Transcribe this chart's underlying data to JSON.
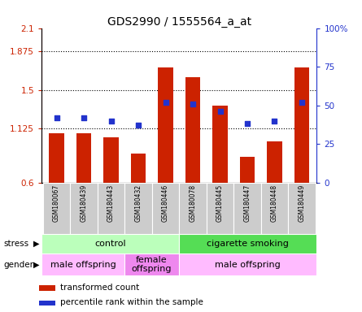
{
  "title": "GDS2990 / 1555564_a_at",
  "samples": [
    "GSM180067",
    "GSM180439",
    "GSM180443",
    "GSM180432",
    "GSM180446",
    "GSM180078",
    "GSM180445",
    "GSM180447",
    "GSM180448",
    "GSM180449"
  ],
  "bar_values": [
    1.08,
    1.08,
    1.04,
    0.88,
    1.72,
    1.62,
    1.35,
    0.85,
    1.0,
    1.72
  ],
  "dot_values": [
    42,
    42,
    40,
    37,
    52,
    51,
    46,
    38,
    40,
    52
  ],
  "ylim": [
    0.6,
    2.1
  ],
  "yticks_left": [
    0.6,
    1.125,
    1.5,
    1.875,
    2.1
  ],
  "ytick_labels_left": [
    "0.6",
    "1.125",
    "1.5",
    "1.875",
    "2.1"
  ],
  "yticks_right": [
    0,
    25,
    50,
    75,
    100
  ],
  "ytick_labels_right": [
    "0",
    "25",
    "50",
    "75",
    "100%"
  ],
  "bar_color": "#cc2200",
  "dot_color": "#2233cc",
  "grid_yticks": [
    1.125,
    1.5,
    1.875
  ],
  "stress_groups": [
    {
      "label": "control",
      "start": 0,
      "end": 5,
      "color": "#bbffbb"
    },
    {
      "label": "cigarette smoking",
      "start": 5,
      "end": 10,
      "color": "#55dd55"
    }
  ],
  "gender_groups": [
    {
      "label": "male offspring",
      "start": 0,
      "end": 3,
      "color": "#ffbbff"
    },
    {
      "label": "female\noffspring",
      "start": 3,
      "end": 5,
      "color": "#ee88ee"
    },
    {
      "label": "male offspring",
      "start": 5,
      "end": 10,
      "color": "#ffbbff"
    }
  ],
  "tick_bg_color": "#cccccc",
  "legend_red_label": "transformed count",
  "legend_blue_label": "percentile rank within the sample"
}
